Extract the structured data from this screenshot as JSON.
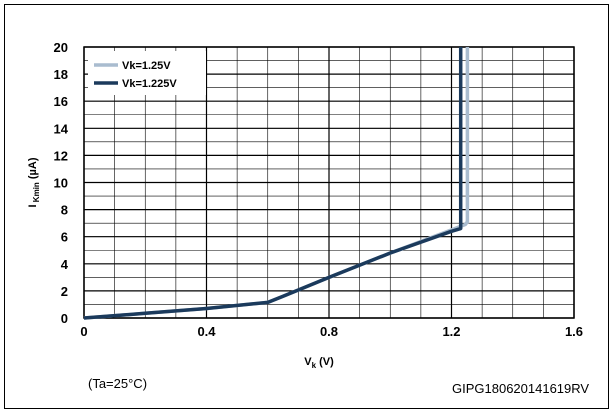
{
  "chart_data": {
    "type": "line",
    "xlabel_main": "V",
    "xlabel_sub": "k",
    "xlabel_unit": " (V)",
    "ylabel_main": "I",
    "ylabel_sub": "Kmin",
    "ylabel_unit": " (µA)",
    "xlim": [
      0,
      1.6
    ],
    "ylim": [
      0,
      20
    ],
    "x_ticks": [
      {
        "value": 0,
        "label": "0"
      },
      {
        "value": 0.4,
        "label": "0.4"
      },
      {
        "value": 0.8,
        "label": "0.8"
      },
      {
        "value": 1.2,
        "label": "1.2"
      },
      {
        "value": 1.6,
        "label": "1.6"
      }
    ],
    "y_ticks": [
      {
        "value": 0,
        "label": "0"
      },
      {
        "value": 2,
        "label": "2"
      },
      {
        "value": 4,
        "label": "4"
      },
      {
        "value": 6,
        "label": "6"
      },
      {
        "value": 8,
        "label": "8"
      },
      {
        "value": 10,
        "label": "10"
      },
      {
        "value": 12,
        "label": "12"
      },
      {
        "value": 14,
        "label": "14"
      },
      {
        "value": 16,
        "label": "16"
      },
      {
        "value": 18,
        "label": "18"
      },
      {
        "value": 20,
        "label": "20"
      }
    ],
    "x_minor_step": 0.1,
    "y_minor_step": 1,
    "grid": true,
    "legend_position": "top-left",
    "series": [
      {
        "name": "Vk=1.25V",
        "color": "#a9bccf",
        "x": [
          0,
          0.2,
          0.4,
          0.6,
          0.65,
          0.8,
          1.0,
          1.2,
          1.245,
          1.252,
          1.252
        ],
        "y": [
          0,
          0.35,
          0.7,
          1.15,
          1.6,
          3.0,
          4.8,
          6.5,
          6.9,
          7.1,
          20
        ]
      },
      {
        "name": "Vk=1.225V",
        "color": "#1b3a5c",
        "x": [
          0,
          0.2,
          0.4,
          0.6,
          0.65,
          0.8,
          1.0,
          1.2,
          1.23,
          1.23
        ],
        "y": [
          0,
          0.35,
          0.7,
          1.15,
          1.6,
          3.0,
          4.8,
          6.4,
          6.6,
          20
        ]
      }
    ]
  },
  "notes": {
    "temperature": "(Ta=25°C)",
    "code": "GIPG180620141619RV"
  }
}
